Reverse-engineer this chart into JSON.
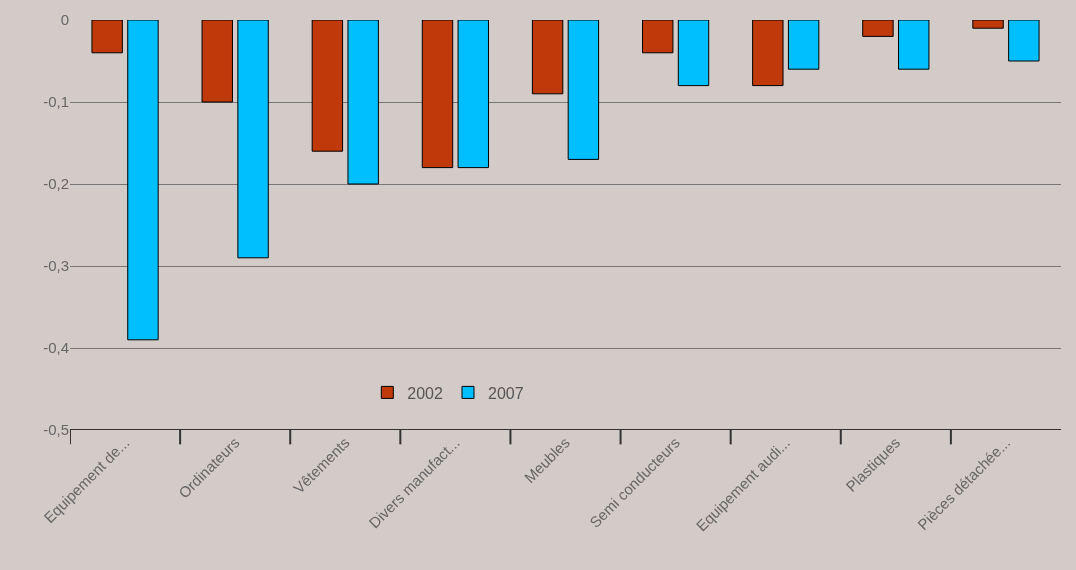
{
  "chart_data": {
    "type": "bar",
    "categories": [
      "Equipement de...",
      "Ordinateurs",
      "Vêtements",
      "Divers manufact...",
      "Meubles",
      "Semi conducteurs",
      "Equipement audi...",
      "Plastiques",
      "Pièces détachée..."
    ],
    "series": [
      {
        "name": "2002",
        "color": "#c0390b",
        "values": [
          -0.04,
          -0.1,
          -0.16,
          -0.18,
          -0.09,
          -0.04,
          -0.08,
          -0.02,
          -0.01
        ]
      },
      {
        "name": "2007",
        "color": "#00bfff",
        "values": [
          -0.39,
          -0.29,
          -0.2,
          -0.18,
          -0.17,
          -0.08,
          -0.06,
          -0.06,
          -0.05
        ]
      }
    ],
    "ylim": [
      -0.5,
      0
    ],
    "yticks": [
      {
        "value": -0.5,
        "label": "-0,5"
      },
      {
        "value": -0.4,
        "label": "-0,4"
      },
      {
        "value": -0.3,
        "label": "-0,3"
      },
      {
        "value": -0.2,
        "label": "-0,2"
      },
      {
        "value": -0.1,
        "label": "-0,1"
      },
      {
        "value": 0,
        "label": "0"
      }
    ],
    "grid": "y",
    "legend": "bottom"
  }
}
